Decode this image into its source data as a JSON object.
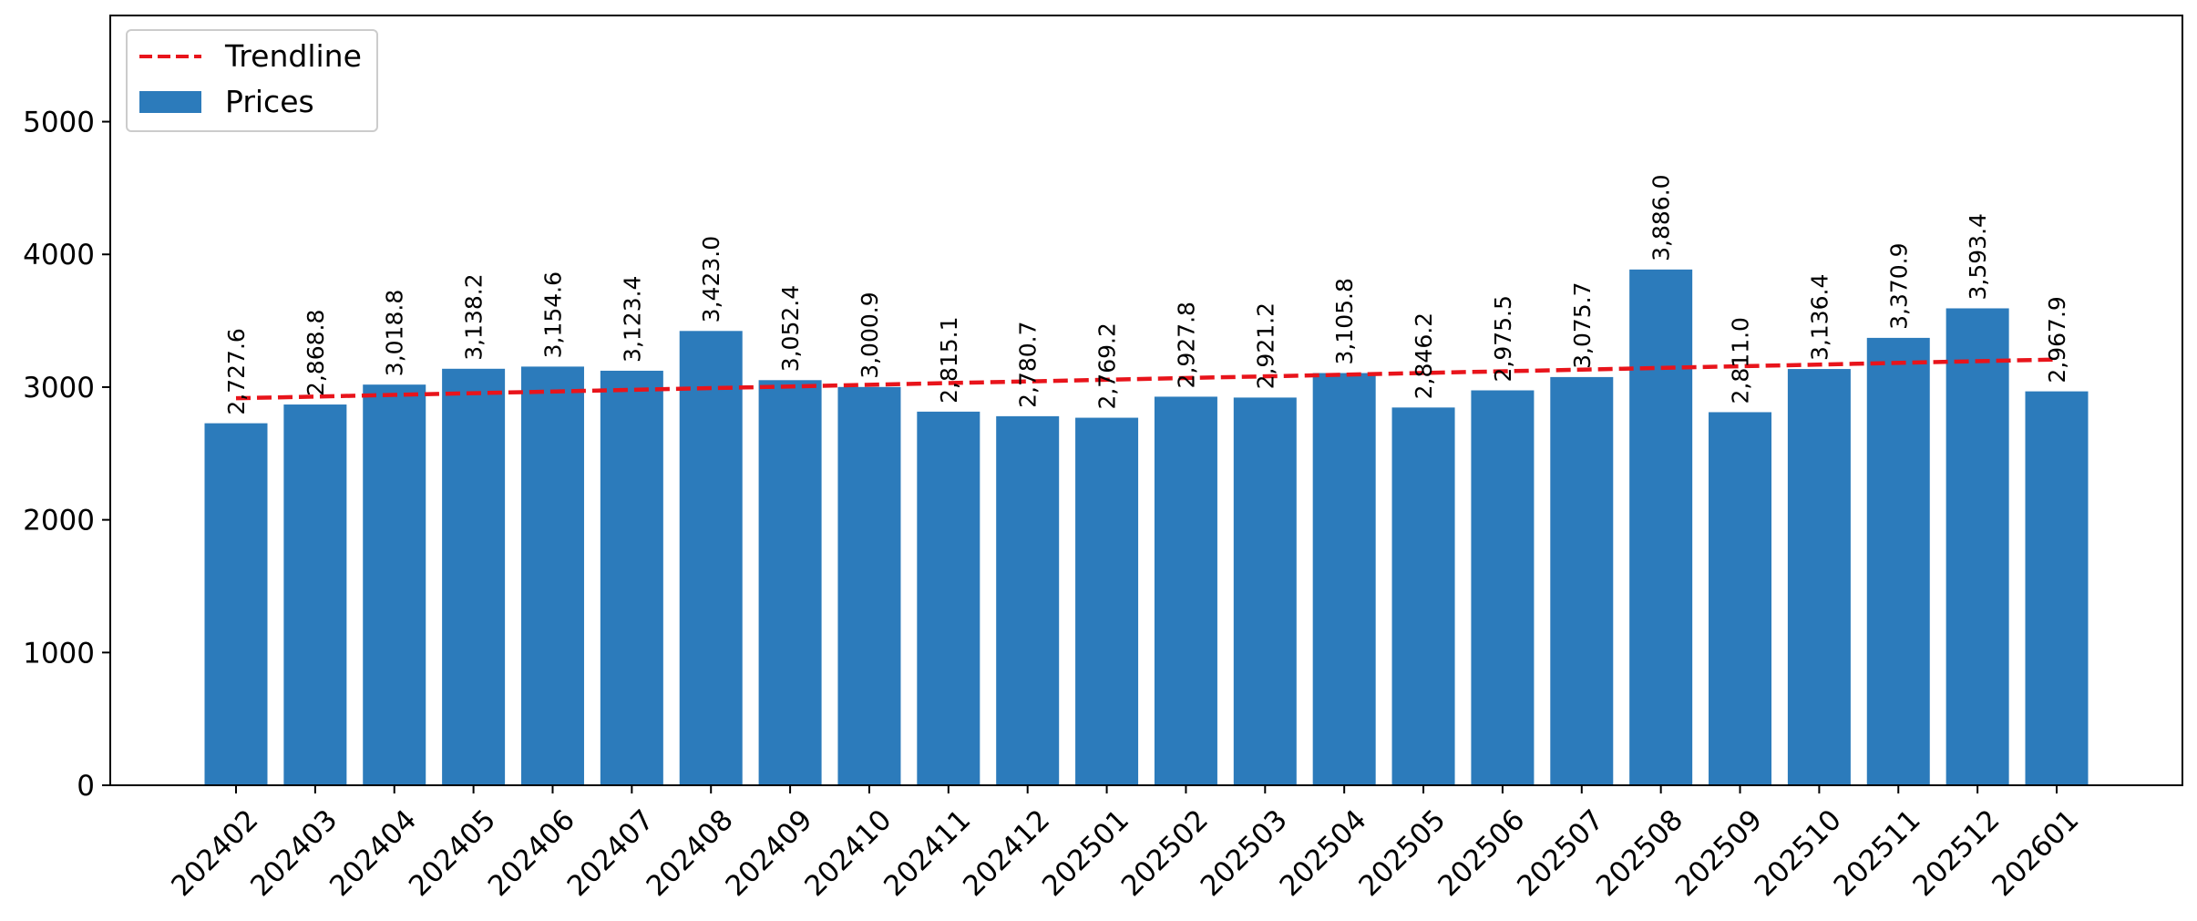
{
  "chart_data": {
    "type": "bar",
    "title": "",
    "xlabel": "",
    "ylabel": "",
    "categories": [
      "202402",
      "202403",
      "202404",
      "202405",
      "202406",
      "202407",
      "202408",
      "202409",
      "202410",
      "202411",
      "202412",
      "202501",
      "202502",
      "202503",
      "202504",
      "202505",
      "202506",
      "202507",
      "202508",
      "202509",
      "202510",
      "202511",
      "202512",
      "202601"
    ],
    "series": [
      {
        "name": "Prices",
        "kind": "bar",
        "color": "#2c7bbb",
        "values": [
          2727.6,
          2868.8,
          3018.8,
          3138.2,
          3154.6,
          3123.4,
          3423.0,
          3052.4,
          3000.9,
          2815.1,
          2780.7,
          2769.2,
          2927.8,
          2921.2,
          3105.8,
          2846.2,
          2975.5,
          3075.7,
          3886.0,
          2811.0,
          3136.4,
          3370.9,
          3593.4,
          2967.9
        ],
        "data_labels": [
          "2,727.6",
          "2,868.8",
          "3,018.8",
          "3,138.2",
          "3,154.6",
          "3,123.4",
          "3,423.0",
          "3,052.4",
          "3,000.9",
          "2,815.1",
          "2,780.7",
          "2,769.2",
          "2,927.8",
          "2,921.2",
          "3,105.8",
          "2,846.2",
          "2,975.5",
          "3,075.7",
          "3,886.0",
          "2,811.0",
          "3,136.4",
          "3,370.9",
          "3,593.4",
          "2,967.9"
        ]
      },
      {
        "name": "Trendline",
        "kind": "line",
        "style": "dashed",
        "color": "#e8141b",
        "start": 2916,
        "end": 3208
      }
    ],
    "ylim": [
      0,
      5800
    ],
    "yticks": [
      0,
      1000,
      2000,
      3000,
      4000,
      5000
    ],
    "ytick_labels": [
      "0",
      "1000",
      "2000",
      "3000",
      "4000",
      "5000"
    ],
    "grid": false,
    "legend": {
      "placement": "top-left",
      "entries": [
        "Trendline",
        "Prices"
      ]
    }
  }
}
